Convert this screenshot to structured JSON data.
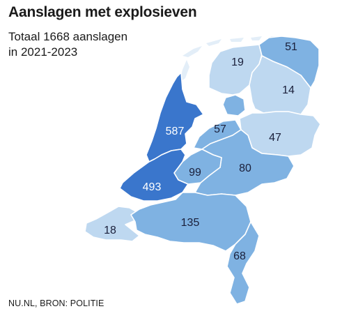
{
  "header": {
    "title": "Aanslagen met explosieven",
    "subtitle_line1": "Totaal 1668 aanslagen",
    "subtitle_line2": "in 2021-2023"
  },
  "source": "NU.NL, BRON: POLITIE",
  "colors": {
    "very_light": "#bed8f0",
    "light": "#a6cbec",
    "medium": "#7fb2e2",
    "dark": "#3a76cc",
    "label_dark": "#1a1f3a",
    "label_light": "#ffffff"
  },
  "provinces": [
    {
      "id": "groningen",
      "value": "51"
    },
    {
      "id": "friesland",
      "value": "19"
    },
    {
      "id": "drenthe",
      "value": "14"
    },
    {
      "id": "overijssel",
      "value": "47"
    },
    {
      "id": "flevoland",
      "value": "57"
    },
    {
      "id": "noord-holland",
      "value": "587"
    },
    {
      "id": "gelderland",
      "value": "80"
    },
    {
      "id": "utrecht",
      "value": "99"
    },
    {
      "id": "zuid-holland",
      "value": "493"
    },
    {
      "id": "zeeland",
      "value": "18"
    },
    {
      "id": "noord-brabant",
      "value": "135"
    },
    {
      "id": "limburg",
      "value": "68"
    }
  ]
}
